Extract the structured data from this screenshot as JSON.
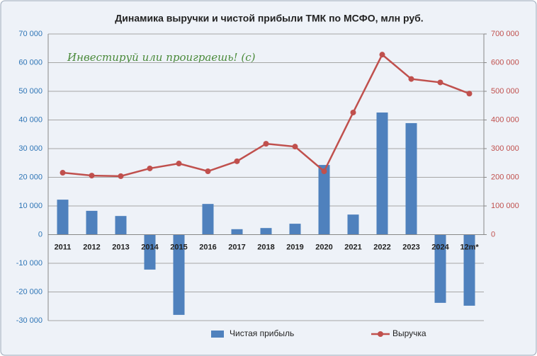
{
  "chart_data": {
    "type": "combo",
    "title": "Динамика выручки и чистой прибыли ТМК по МСФО, млн руб.",
    "annotation": "Инвестируй или проиграешь! (с)",
    "categories": [
      "2011",
      "2012",
      "2013",
      "2014",
      "2015",
      "2016",
      "2017",
      "2018",
      "2019",
      "2020",
      "2021",
      "2022",
      "2023",
      "2024",
      "12m*"
    ],
    "series": [
      {
        "name": "Чистая прибыль",
        "type": "bar",
        "color": "#4f81bd",
        "values": [
          12200,
          8300,
          6500,
          -12200,
          -28000,
          10700,
          1900,
          2300,
          3800,
          24300,
          7000,
          42600,
          38900,
          -23800,
          -24800
        ]
      },
      {
        "name": "Выручка",
        "type": "line",
        "axis": "y2",
        "color": "#c0504d",
        "values": [
          216000,
          206000,
          204000,
          231000,
          248000,
          221000,
          256000,
          317000,
          307000,
          221000,
          426000,
          628000,
          543000,
          531000,
          492000
        ]
      }
    ],
    "ylim": [
      -30000,
      70000
    ],
    "yticks": [
      {
        "value": -30000,
        "label": "-30 000"
      },
      {
        "value": -20000,
        "label": "-20 000"
      },
      {
        "value": -10000,
        "label": "-10 000"
      },
      0,
      {
        "value": 10000,
        "label": "10 000"
      },
      {
        "value": 20000,
        "label": "20 000"
      },
      {
        "value": 30000,
        "label": "30 000"
      },
      {
        "value": 40000,
        "label": "40 000"
      },
      {
        "value": 50000,
        "label": "50 000"
      },
      {
        "value": 60000,
        "label": "60 000"
      },
      {
        "value": 70000,
        "label": "70 000"
      }
    ],
    "y2lim": [
      -300000,
      700000
    ],
    "y2ticks": [
      0,
      {
        "value": 100000,
        "label": "100 000"
      },
      {
        "value": 200000,
        "label": "200 000"
      },
      {
        "value": 300000,
        "label": "300 000"
      },
      {
        "value": 400000,
        "label": "400 000"
      },
      {
        "value": 500000,
        "label": "500 000"
      },
      {
        "value": 600000,
        "label": "600 000"
      },
      {
        "value": 700000,
        "label": "700 000"
      }
    ],
    "grid": true
  }
}
